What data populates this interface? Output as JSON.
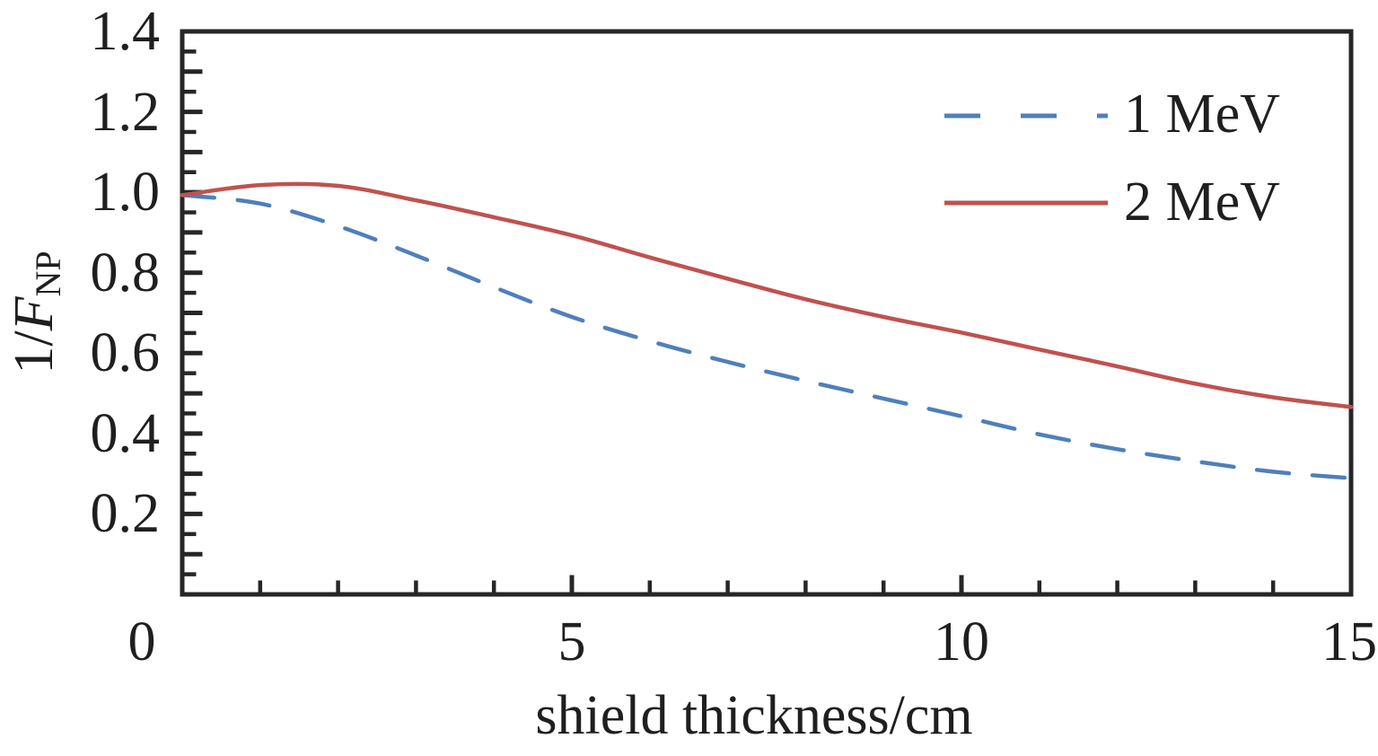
{
  "chart_data": {
    "type": "line",
    "title": "",
    "xlabel": "shield thickness/cm",
    "ylabel": {
      "full": "1/F_NP",
      "prefix": "1/",
      "symbol": "F",
      "subscript": "NP"
    },
    "xlim": [
      0,
      15
    ],
    "ylim": [
      0,
      1.4
    ],
    "x_major_ticks": [
      0,
      5,
      10,
      15
    ],
    "x_tick_labels": [
      "0",
      "5",
      "10",
      "15"
    ],
    "x_minor_step": 1,
    "y_major_step": 0.1,
    "y_label_step": 0.2,
    "y_tick_labels": [
      "0.2",
      "0.4",
      "0.6",
      "0.8",
      "1.0",
      "1.2",
      "1.4"
    ],
    "y_minor_step": 0.05,
    "grid": false,
    "legend_position": "top-right",
    "axis_color": "#262626",
    "text_color": "#1f1f1f",
    "x": [
      0,
      1,
      2,
      3,
      4,
      5,
      6,
      7,
      8,
      9,
      10,
      11,
      12,
      13,
      14,
      15
    ],
    "series": [
      {
        "name": "1 MeV",
        "color": "#4f7fbb",
        "style": "dashed",
        "values": [
          0.993,
          0.972,
          0.916,
          0.843,
          0.764,
          0.69,
          0.63,
          0.578,
          0.531,
          0.487,
          0.443,
          0.398,
          0.361,
          0.331,
          0.305,
          0.289
        ]
      },
      {
        "name": "2 MeV",
        "color": "#c0524e",
        "style": "solid",
        "values": [
          0.993,
          1.018,
          1.016,
          0.98,
          0.938,
          0.893,
          0.838,
          0.785,
          0.734,
          0.69,
          0.651,
          0.609,
          0.567,
          0.524,
          0.49,
          0.466
        ]
      }
    ]
  }
}
